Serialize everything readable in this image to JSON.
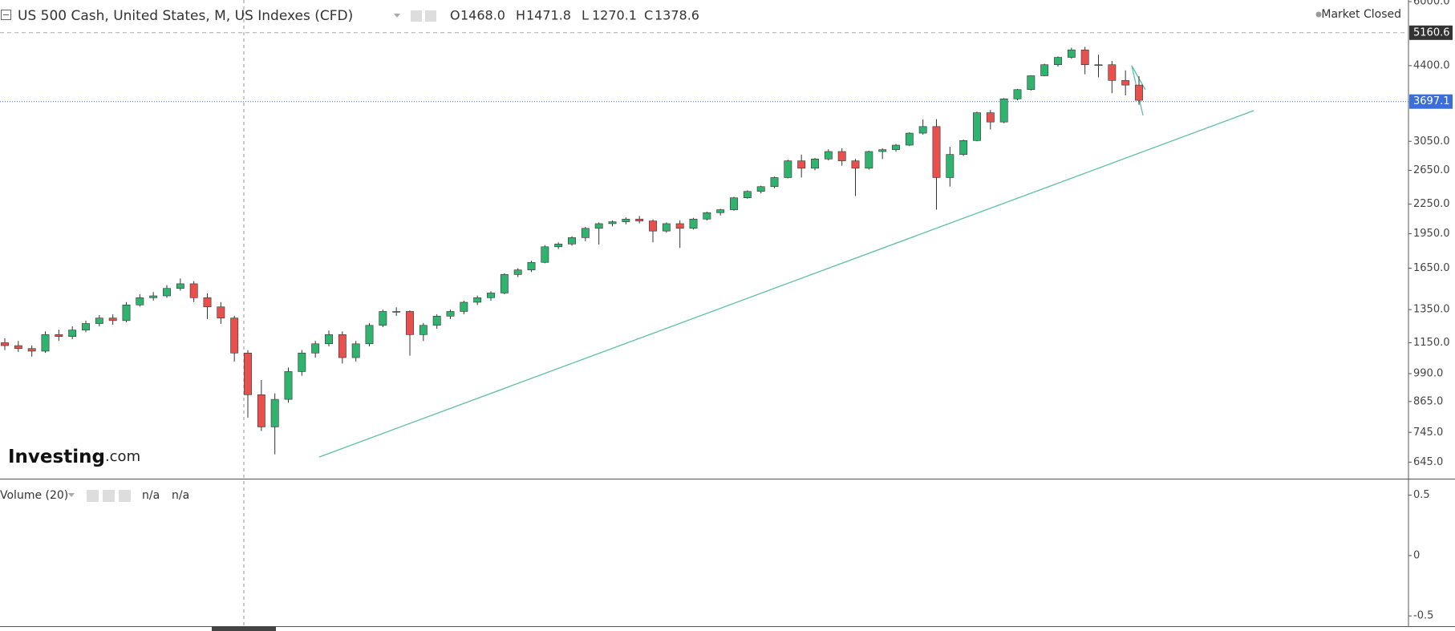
{
  "chart_data": {
    "type": "candlestick",
    "title": "US 500 Cash, United States, M, US Indexes (CFD)",
    "ohlc": [
      {
        "label": "O",
        "value": "1468.0"
      },
      {
        "label": "H",
        "value": "1471.8"
      },
      {
        "label": "L",
        "value": "1270.1"
      },
      {
        "label": "C",
        "value": "1378.6"
      }
    ],
    "status": "Market Closed",
    "logo": {
      "brand": "Investing",
      "suffix": ".com"
    },
    "log_scale": true,
    "up_color": "#2fb36e",
    "down_color": "#e8504d",
    "ylim": [
      600,
      6000
    ],
    "yticks": [
      {
        "value": 645,
        "label": "645.0"
      },
      {
        "value": 745,
        "label": "745.0"
      },
      {
        "value": 865,
        "label": "865.0"
      },
      {
        "value": 990,
        "label": "990.0"
      },
      {
        "value": 1150,
        "label": "1150.0"
      },
      {
        "value": 1350,
        "label": "1350.0"
      },
      {
        "value": 1650,
        "label": "1650.0"
      },
      {
        "value": 1950,
        "label": "1950.0"
      },
      {
        "value": 2250,
        "label": "2250.0"
      },
      {
        "value": 2650,
        "label": "2650.0"
      },
      {
        "value": 3050,
        "label": "3050.0"
      },
      {
        "value": 4400,
        "label": "4400.0"
      },
      {
        "value": 6000,
        "label": "6000.0"
      }
    ],
    "price_lines": [
      5160.6,
      3697.1
    ],
    "candles": [
      [
        1150,
        1175,
        1110,
        1134
      ],
      [
        1134,
        1160,
        1100,
        1118
      ],
      [
        1118,
        1135,
        1075,
        1104
      ],
      [
        1104,
        1215,
        1095,
        1196
      ],
      [
        1196,
        1225,
        1160,
        1185
      ],
      [
        1185,
        1245,
        1170,
        1223
      ],
      [
        1223,
        1280,
        1210,
        1262
      ],
      [
        1262,
        1315,
        1245,
        1296
      ],
      [
        1296,
        1320,
        1255,
        1280
      ],
      [
        1280,
        1400,
        1270,
        1381
      ],
      [
        1381,
        1455,
        1370,
        1430
      ],
      [
        1430,
        1470,
        1410,
        1443
      ],
      [
        1443,
        1520,
        1430,
        1496
      ],
      [
        1496,
        1570,
        1480,
        1530
      ],
      [
        1530,
        1550,
        1400,
        1430
      ],
      [
        1430,
        1460,
        1290,
        1368
      ],
      [
        1368,
        1400,
        1260,
        1296
      ],
      [
        1296,
        1310,
        1050,
        1094
      ],
      [
        1094,
        1110,
        800,
        894
      ],
      [
        894,
        960,
        750,
        765
      ],
      [
        765,
        900,
        670,
        874
      ],
      [
        874,
        1020,
        860,
        1000
      ],
      [
        1000,
        1110,
        980,
        1094
      ],
      [
        1094,
        1160,
        1070,
        1144
      ],
      [
        1144,
        1220,
        1130,
        1196
      ],
      [
        1196,
        1215,
        1040,
        1070
      ],
      [
        1070,
        1160,
        1050,
        1144
      ],
      [
        1144,
        1265,
        1130,
        1251
      ],
      [
        1251,
        1350,
        1240,
        1338
      ],
      [
        1338,
        1365,
        1310,
        1338
      ],
      [
        1338,
        1345,
        1080,
        1196
      ],
      [
        1196,
        1265,
        1160,
        1251
      ],
      [
        1251,
        1320,
        1230,
        1308
      ],
      [
        1308,
        1350,
        1290,
        1338
      ],
      [
        1338,
        1410,
        1320,
        1399
      ],
      [
        1399,
        1445,
        1380,
        1430
      ],
      [
        1430,
        1475,
        1410,
        1463
      ],
      [
        1463,
        1610,
        1455,
        1600
      ],
      [
        1600,
        1650,
        1580,
        1636
      ],
      [
        1636,
        1710,
        1620,
        1697
      ],
      [
        1697,
        1845,
        1690,
        1830
      ],
      [
        1830,
        1870,
        1810,
        1855
      ],
      [
        1855,
        1925,
        1840,
        1913
      ],
      [
        1913,
        2015,
        1880,
        2001
      ],
      [
        2001,
        2060,
        1850,
        2047
      ],
      [
        2047,
        2080,
        2020,
        2066
      ],
      [
        2066,
        2110,
        2040,
        2093
      ],
      [
        2093,
        2125,
        2050,
        2074
      ],
      [
        2074,
        2090,
        1870,
        1975
      ],
      [
        1975,
        2060,
        1960,
        2047
      ],
      [
        2047,
        2080,
        1820,
        2001
      ],
      [
        2001,
        2105,
        1990,
        2093
      ],
      [
        2093,
        2170,
        2080,
        2159
      ],
      [
        2159,
        2200,
        2130,
        2190
      ],
      [
        2190,
        2330,
        2180,
        2320
      ],
      [
        2320,
        2405,
        2310,
        2393
      ],
      [
        2393,
        2460,
        2370,
        2449
      ],
      [
        2449,
        2570,
        2430,
        2559
      ],
      [
        2559,
        2790,
        2550,
        2775
      ],
      [
        2775,
        2860,
        2560,
        2677
      ],
      [
        2677,
        2815,
        2650,
        2800
      ],
      [
        2800,
        2935,
        2780,
        2903
      ],
      [
        2903,
        2950,
        2710,
        2775
      ],
      [
        2775,
        2800,
        2340,
        2677
      ],
      [
        2677,
        2915,
        2660,
        2903
      ],
      [
        2903,
        2950,
        2800,
        2929
      ],
      [
        2929,
        3010,
        2900,
        2994
      ],
      [
        2994,
        3185,
        2980,
        3173
      ],
      [
        3173,
        3390,
        3150,
        3276
      ],
      [
        3276,
        3395,
        2190,
        2559
      ],
      [
        2559,
        2970,
        2450,
        2862
      ],
      [
        2862,
        3075,
        2840,
        3061
      ],
      [
        3061,
        3520,
        3050,
        3503
      ],
      [
        3503,
        3550,
        3230,
        3349
      ],
      [
        3349,
        3760,
        3330,
        3746
      ],
      [
        3746,
        3930,
        3720,
        3918
      ],
      [
        3918,
        4200,
        3900,
        4190
      ],
      [
        4190,
        4440,
        4180,
        4420
      ],
      [
        4420,
        4600,
        4380,
        4580
      ],
      [
        4580,
        4800,
        4550,
        4749
      ],
      [
        4749,
        4820,
        4220,
        4420
      ],
      [
        4420,
        4640,
        4160,
        4420
      ],
      [
        4420,
        4500,
        3850,
        4095
      ],
      [
        4095,
        4300,
        3810,
        4005
      ],
      [
        4005,
        4180,
        3640,
        3720
      ]
    ],
    "volume": {
      "label": "Volume (20)",
      "values": [
        "n/a",
        "n/a"
      ],
      "ylim": [
        -0.585,
        0.63
      ],
      "yticks": [
        0.5,
        0,
        -0.5
      ]
    }
  }
}
